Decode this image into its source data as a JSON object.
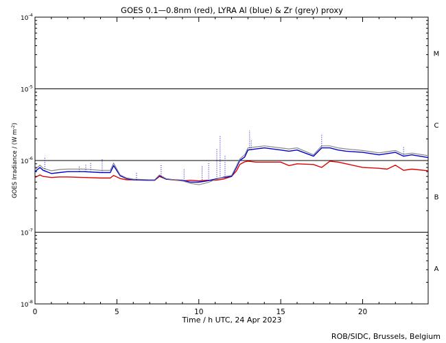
{
  "chart_data": {
    "type": "line",
    "title": "GOES 0.1—0.8nm (red), LYRA Al (blue) & Zr (grey) proxy",
    "xlabel": "Time / h UTC, 24 Apr 2023",
    "ylabel_main": "GOES Irradiance / (W m",
    "ylabel_sup": "-2",
    "ylabel_close": ")",
    "credit": "ROB/SIDC, Brussels, Belgium",
    "xlim": [
      0,
      24
    ],
    "ylim": [
      1e-08,
      0.0001
    ],
    "yscale": "log",
    "x_ticks": [
      {
        "value": 0,
        "label": "0"
      },
      {
        "value": 5,
        "label": "5"
      },
      {
        "value": 10,
        "label": "10"
      },
      {
        "value": 15,
        "label": "15"
      },
      {
        "value": 20,
        "label": "20"
      }
    ],
    "y_ticks": [
      {
        "value": 1e-08,
        "base": "10",
        "exp": "-8"
      },
      {
        "value": 1e-07,
        "base": "10",
        "exp": "-7"
      },
      {
        "value": 1e-06,
        "base": "10",
        "exp": "-6"
      },
      {
        "value": 1e-05,
        "base": "10",
        "exp": "-5"
      },
      {
        "value": 0.0001,
        "base": "10",
        "exp": "-4"
      }
    ],
    "flare_class_lines": [
      1e-07,
      1e-06,
      1e-05
    ],
    "flare_classes": [
      {
        "label": "A",
        "value": 3.16e-08
      },
      {
        "label": "B",
        "value": 3.16e-07
      },
      {
        "label": "C",
        "value": 3.16e-06
      },
      {
        "label": "M",
        "value": 3.16e-05
      }
    ],
    "series": [
      {
        "color": "#dd0000",
        "x": [
          0,
          0.3,
          0.5,
          1,
          1.5,
          2,
          3,
          4,
          4.6,
          4.8,
          5.2,
          5.6,
          6,
          7,
          7.3,
          7.6,
          8,
          9,
          9.5,
          10,
          10.5,
          11,
          11.5,
          12,
          12.3,
          12.5,
          12.8,
          13,
          13.5,
          14,
          15,
          15.5,
          16,
          17,
          17.5,
          18,
          18.5,
          19,
          20,
          21,
          21.5,
          22,
          22.5,
          23,
          24
        ],
        "y": [
          5.8e-07,
          6.3e-07,
          6e-07,
          5.8e-07,
          5.9e-07,
          5.9e-07,
          5.8e-07,
          5.7e-07,
          5.7e-07,
          6.2e-07,
          5.6e-07,
          5.4e-07,
          5.4e-07,
          5.3e-07,
          5.3e-07,
          6e-07,
          5.5e-07,
          5.2e-07,
          5.3e-07,
          5.2e-07,
          5.3e-07,
          5.3e-07,
          5.5e-07,
          6e-07,
          7.2e-07,
          8.8e-07,
          9.6e-07,
          9.8e-07,
          9.5e-07,
          9.5e-07,
          9.5e-07,
          8.5e-07,
          9e-07,
          8.8e-07,
          8e-07,
          9.8e-07,
          9.5e-07,
          9e-07,
          8e-07,
          7.8e-07,
          7.6e-07,
          8.6e-07,
          7.3e-07,
          7.6e-07,
          7.2e-07
        ]
      },
      {
        "color": "#0000cc",
        "x": [
          0,
          0.3,
          0.5,
          1,
          1.5,
          2,
          3,
          4,
          4.6,
          4.8,
          5.2,
          5.6,
          6,
          7,
          7.3,
          7.6,
          8,
          9,
          9.5,
          10,
          10.5,
          11,
          11.5,
          12,
          12.3,
          12.5,
          12.8,
          13,
          13.5,
          14,
          15,
          15.5,
          16,
          17,
          17.5,
          18,
          18.5,
          19,
          20,
          21,
          21.5,
          22,
          22.5,
          23,
          24
        ],
        "y": [
          7e-07,
          8e-07,
          7.3e-07,
          6.6e-07,
          6.8e-07,
          7e-07,
          7e-07,
          6.8e-07,
          6.8e-07,
          8.5e-07,
          6.1e-07,
          5.6e-07,
          5.4e-07,
          5.3e-07,
          5.3e-07,
          6.2e-07,
          5.5e-07,
          5.3e-07,
          5e-07,
          5e-07,
          5.2e-07,
          5.5e-07,
          5.8e-07,
          6e-07,
          8e-07,
          1e-06,
          1.12e-06,
          1.4e-06,
          1.45e-06,
          1.5e-06,
          1.4e-06,
          1.35e-06,
          1.4e-06,
          1.15e-06,
          1.5e-06,
          1.5e-06,
          1.4e-06,
          1.35e-06,
          1.3e-06,
          1.2e-06,
          1.25e-06,
          1.3e-06,
          1.15e-06,
          1.2e-06,
          1.1e-06
        ]
      },
      {
        "color": "#888888",
        "x": [
          0,
          0.3,
          0.5,
          1,
          1.5,
          2,
          3,
          4,
          4.6,
          4.8,
          5.2,
          5.6,
          6,
          7,
          7.3,
          7.6,
          8,
          9,
          9.5,
          10,
          10.5,
          11,
          11.5,
          12,
          12.3,
          12.5,
          12.8,
          13,
          13.5,
          14,
          15,
          15.5,
          16,
          17,
          17.5,
          18,
          18.5,
          19,
          20,
          21,
          21.5,
          22,
          22.5,
          23,
          24
        ],
        "y": [
          7.5e-07,
          8.6e-07,
          7.8e-07,
          7.2e-07,
          7.5e-07,
          7.6e-07,
          7.6e-07,
          7.3e-07,
          7.3e-07,
          9.2e-07,
          6.3e-07,
          5.7e-07,
          5.5e-07,
          5.4e-07,
          5.4e-07,
          6.3e-07,
          5.6e-07,
          5.2e-07,
          4.8e-07,
          4.6e-07,
          4.9e-07,
          5.4e-07,
          5.9e-07,
          6.2e-07,
          8.4e-07,
          1.05e-06,
          1.2e-06,
          1.5e-06,
          1.55e-06,
          1.6e-06,
          1.5e-06,
          1.45e-06,
          1.5e-06,
          1.2e-06,
          1.6e-06,
          1.6e-06,
          1.5e-06,
          1.45e-06,
          1.38e-06,
          1.28e-06,
          1.33e-06,
          1.38e-06,
          1.22e-06,
          1.27e-06,
          1.17e-06
        ]
      }
    ],
    "spikes": {
      "color": "#0000cc",
      "points": [
        {
          "x": 0.6,
          "y": 1.1e-06
        },
        {
          "x": 2.7,
          "y": 8.5e-07
        },
        {
          "x": 3.1,
          "y": 8.8e-07
        },
        {
          "x": 3.4,
          "y": 9.5e-07
        },
        {
          "x": 4.1,
          "y": 1.05e-06
        },
        {
          "x": 6.2,
          "y": 6.8e-07
        },
        {
          "x": 7.7,
          "y": 9e-07
        },
        {
          "x": 9.1,
          "y": 7.8e-07
        },
        {
          "x": 10.2,
          "y": 8.6e-07
        },
        {
          "x": 10.6,
          "y": 9.6e-07
        },
        {
          "x": 11.1,
          "y": 1.5e-06
        },
        {
          "x": 11.3,
          "y": 2.2e-06
        },
        {
          "x": 11.6,
          "y": 1.2e-06
        },
        {
          "x": 13.1,
          "y": 2.6e-06
        },
        {
          "x": 13.2,
          "y": 1.9e-06
        },
        {
          "x": 17.5,
          "y": 2.3e-06
        },
        {
          "x": 22.5,
          "y": 1.6e-06
        }
      ]
    }
  }
}
